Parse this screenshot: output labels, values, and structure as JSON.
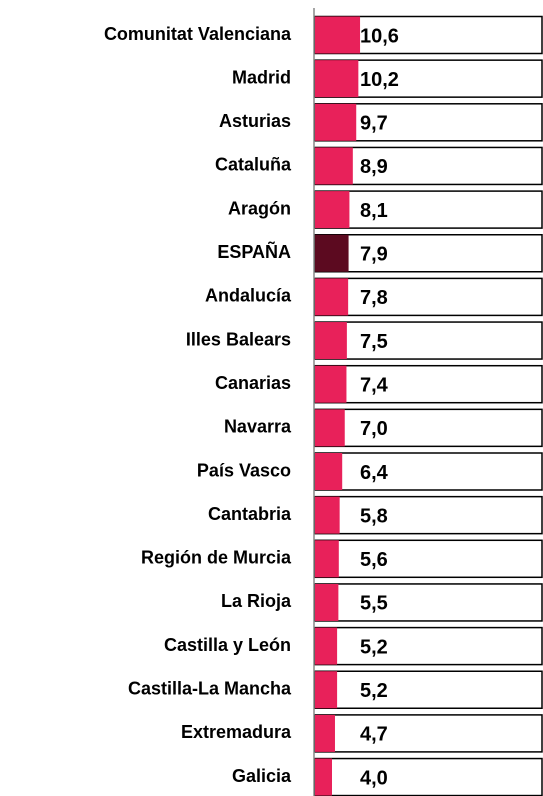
{
  "chart_data": {
    "type": "bar",
    "orientation": "horizontal",
    "categories": [
      "Comunitat Valenciana",
      "Madrid",
      "Asturias",
      "Cataluña",
      "Aragón",
      "ESPAÑA",
      "Andalucía",
      "Illes Balears",
      "Canarias",
      "Navarra",
      "País Vasco",
      "Cantabria",
      "Región de Murcia",
      "La Rioja",
      "Castilla y León",
      "Castilla-La Mancha",
      "Extremadura",
      "Galicia"
    ],
    "values": [
      10.6,
      10.2,
      9.7,
      8.9,
      8.1,
      7.9,
      7.8,
      7.5,
      7.4,
      7.0,
      6.4,
      5.8,
      5.6,
      5.5,
      5.2,
      5.2,
      4.7,
      4.0
    ],
    "value_labels": [
      "10,6",
      "10,2",
      "9,7",
      "8,9",
      "8,1",
      "7,9",
      "7,8",
      "7,5",
      "7,4",
      "7,0",
      "6,4",
      "5,8",
      "5,6",
      "5,5",
      "5,2",
      "5,2",
      "4,7",
      "4,0"
    ],
    "colors": [
      "#e8215a",
      "#e8215a",
      "#e8215a",
      "#e8215a",
      "#e8215a",
      "#5c0a20",
      "#e8215a",
      "#e8215a",
      "#e8215a",
      "#e8215a",
      "#e8215a",
      "#e8215a",
      "#e8215a",
      "#e8215a",
      "#e8215a",
      "#e8215a",
      "#e8215a",
      "#e8215a"
    ]
  }
}
